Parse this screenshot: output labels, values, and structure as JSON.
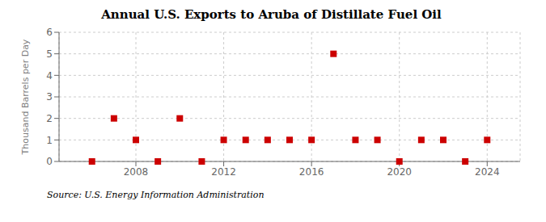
{
  "chart_data": {
    "type": "scatter",
    "title": "Annual U.S. Exports to Aruba of Distillate Fuel Oil",
    "y_label": "Thousand Barrels per Day",
    "annotation": "Source: U.S. Energy Information Administration",
    "x": [
      2006,
      2007,
      2008,
      2009,
      2010,
      2011,
      2012,
      2013,
      2014,
      2015,
      2016,
      2017,
      2018,
      2019,
      2020,
      2021,
      2022,
      2023,
      2024
    ],
    "values": [
      0,
      2,
      1,
      0,
      2,
      0,
      1,
      1,
      1,
      1,
      1,
      5,
      1,
      1,
      0,
      1,
      1,
      0,
      1
    ],
    "color": "#cc0000",
    "marker": "square",
    "xlim": [
      2004.5,
      2025.5
    ],
    "xticks": [
      2008,
      2012,
      2016,
      2020,
      2024
    ],
    "ylim": [
      0,
      6
    ],
    "yticks": [
      0,
      1,
      2,
      3,
      4,
      5,
      6
    ],
    "grid": true
  }
}
